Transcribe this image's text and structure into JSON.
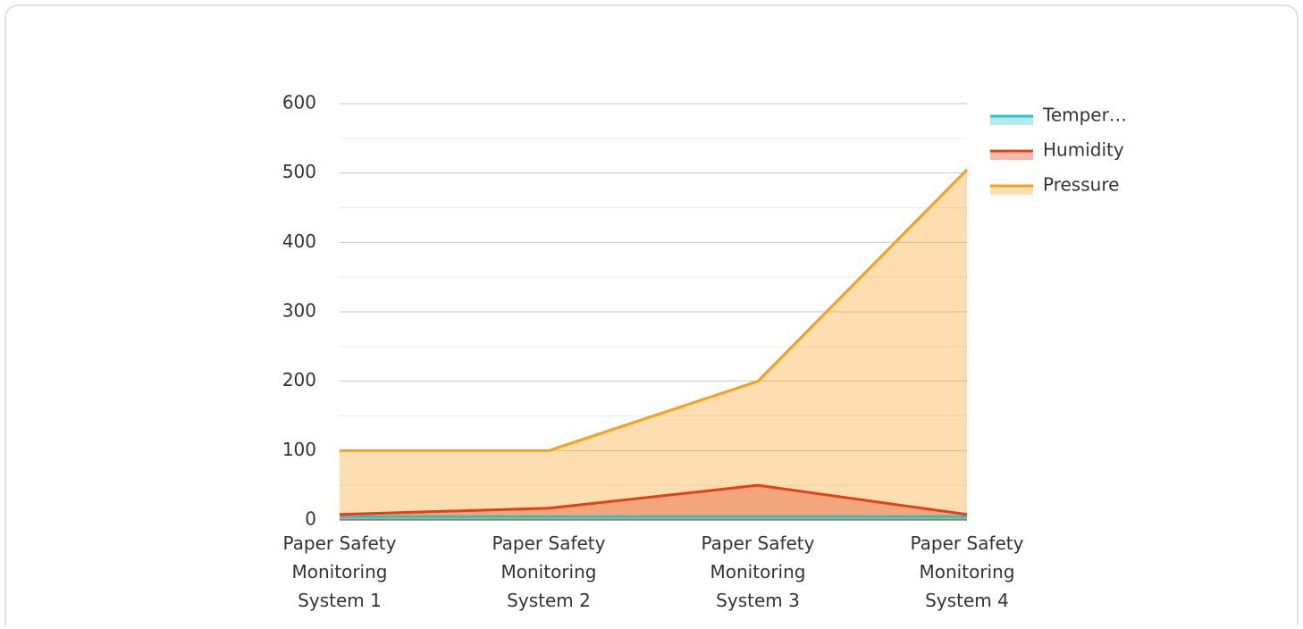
{
  "chart_data": {
    "type": "area",
    "categories": [
      "Paper Safety Monitoring System 1",
      "Paper Safety Monitoring System 2",
      "Paper Safety Monitoring System 3",
      "Paper Safety Monitoring System 4"
    ],
    "series": [
      {
        "name": "Temper…",
        "color": "#2cc3c6",
        "values": [
          5,
          5,
          5,
          5
        ]
      },
      {
        "name": "Humidity",
        "color": "#e0401a",
        "values": [
          8,
          17,
          50,
          8
        ]
      },
      {
        "name": "Pressure",
        "color": "#f8a01c",
        "values": [
          100,
          100,
          200,
          505
        ]
      }
    ],
    "ylim": [
      0,
      600
    ],
    "yticks": [
      0,
      100,
      200,
      300,
      400,
      500,
      600
    ],
    "grid": true,
    "legend": "right"
  }
}
